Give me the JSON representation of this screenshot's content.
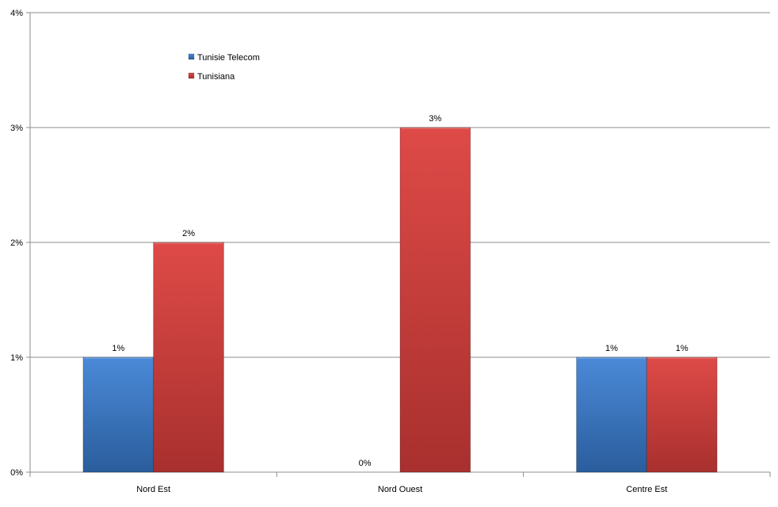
{
  "chart_data": {
    "type": "bar",
    "categories": [
      "Nord Est",
      "Nord Ouest",
      "Centre Est"
    ],
    "series": [
      {
        "name": "Tunisie Telecom",
        "values": [
          1,
          0,
          1
        ],
        "labels": [
          "1%",
          "0%",
          "1%"
        ],
        "color": "#3a78c6"
      },
      {
        "name": "Tunisiana",
        "values": [
          2,
          3,
          1
        ],
        "labels": [
          "2%",
          "3%",
          "1%"
        ],
        "color": "#c83a38"
      }
    ],
    "ylim": [
      0,
      4
    ],
    "yticks": [
      "0%",
      "1%",
      "2%",
      "3%",
      "4%"
    ],
    "grid": true,
    "legend_position": "top-left",
    "title": "",
    "xlabel": "",
    "ylabel": ""
  }
}
